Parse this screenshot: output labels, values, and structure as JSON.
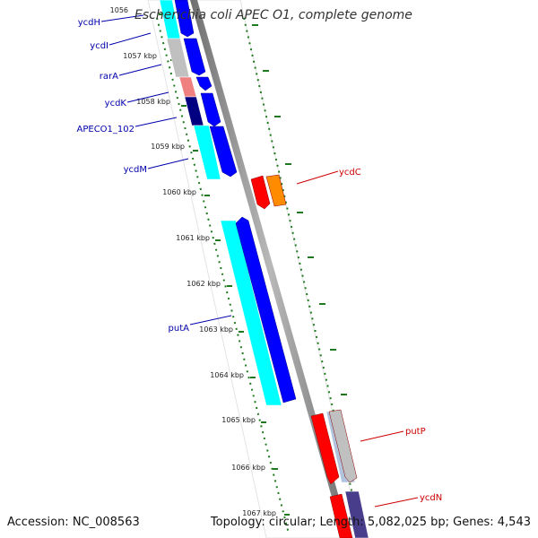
{
  "title": "Escherichia coli APEC O1, complete genome",
  "footer": {
    "accession": "Accession: NC_008563",
    "summary": "Topology: circular; Length: 5,082,025 bp; Genes: 4,543"
  },
  "colors": {
    "backbone": "#909090",
    "ruler": "#1f7a1f",
    "label_forward": "#0000aa",
    "label_reverse": "#cc0000"
  },
  "ticks": [
    "1056",
    "1057 kbp",
    "1058 kbp",
    "1059 kbp",
    "1060 kbp",
    "1061 kbp",
    "1062 kbp",
    "1063 kbp",
    "1064 kbp",
    "1065 kbp",
    "1066 kbp",
    "1067 kbp"
  ],
  "genes_left": [
    {
      "label": "ycdH",
      "color": "#00ffff"
    },
    {
      "label": "ycdI",
      "color": "#c0c0c0"
    },
    {
      "label": "rarA",
      "color": "#f08080"
    },
    {
      "label": "ycdK",
      "color": "#000080"
    },
    {
      "label": "APECO1_102",
      "color": "#00ffff"
    },
    {
      "label": "ycdM",
      "color": "#00ffff"
    },
    {
      "label": "putA",
      "color": "#00ffff"
    }
  ],
  "genes_right": [
    {
      "label": "ycdC",
      "color": "#ff0000"
    },
    {
      "label": "putP",
      "color": "#ff0000"
    },
    {
      "label": "ycdN",
      "color": "#ff0000"
    }
  ]
}
